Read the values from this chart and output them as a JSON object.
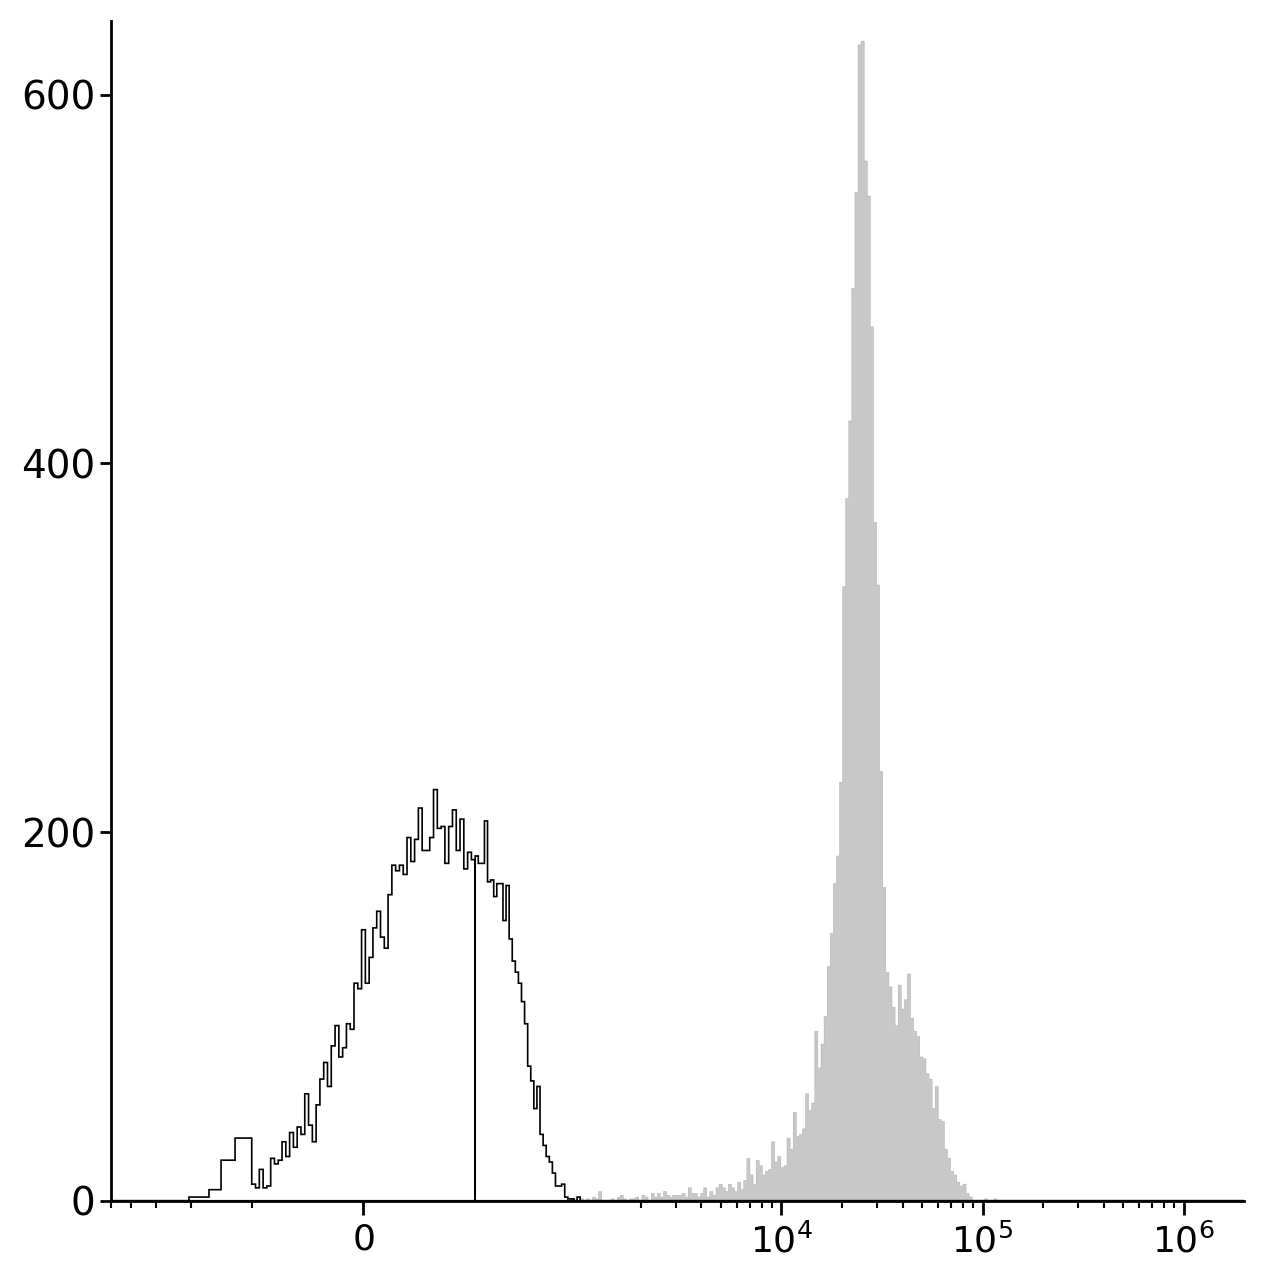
{
  "title": "",
  "ylabel": "",
  "xlabel": "",
  "ylim": [
    0,
    640
  ],
  "yticks": [
    0,
    200,
    400,
    600
  ],
  "bg_color": "#ffffff",
  "black_color": "#000000",
  "gray_fill_color": "#c8c8c8",
  "gray_edge_color": "#aaaaaa",
  "linthresh": 300,
  "linscale": 0.5,
  "xlim_left": -1500,
  "xlim_right": 2000000
}
